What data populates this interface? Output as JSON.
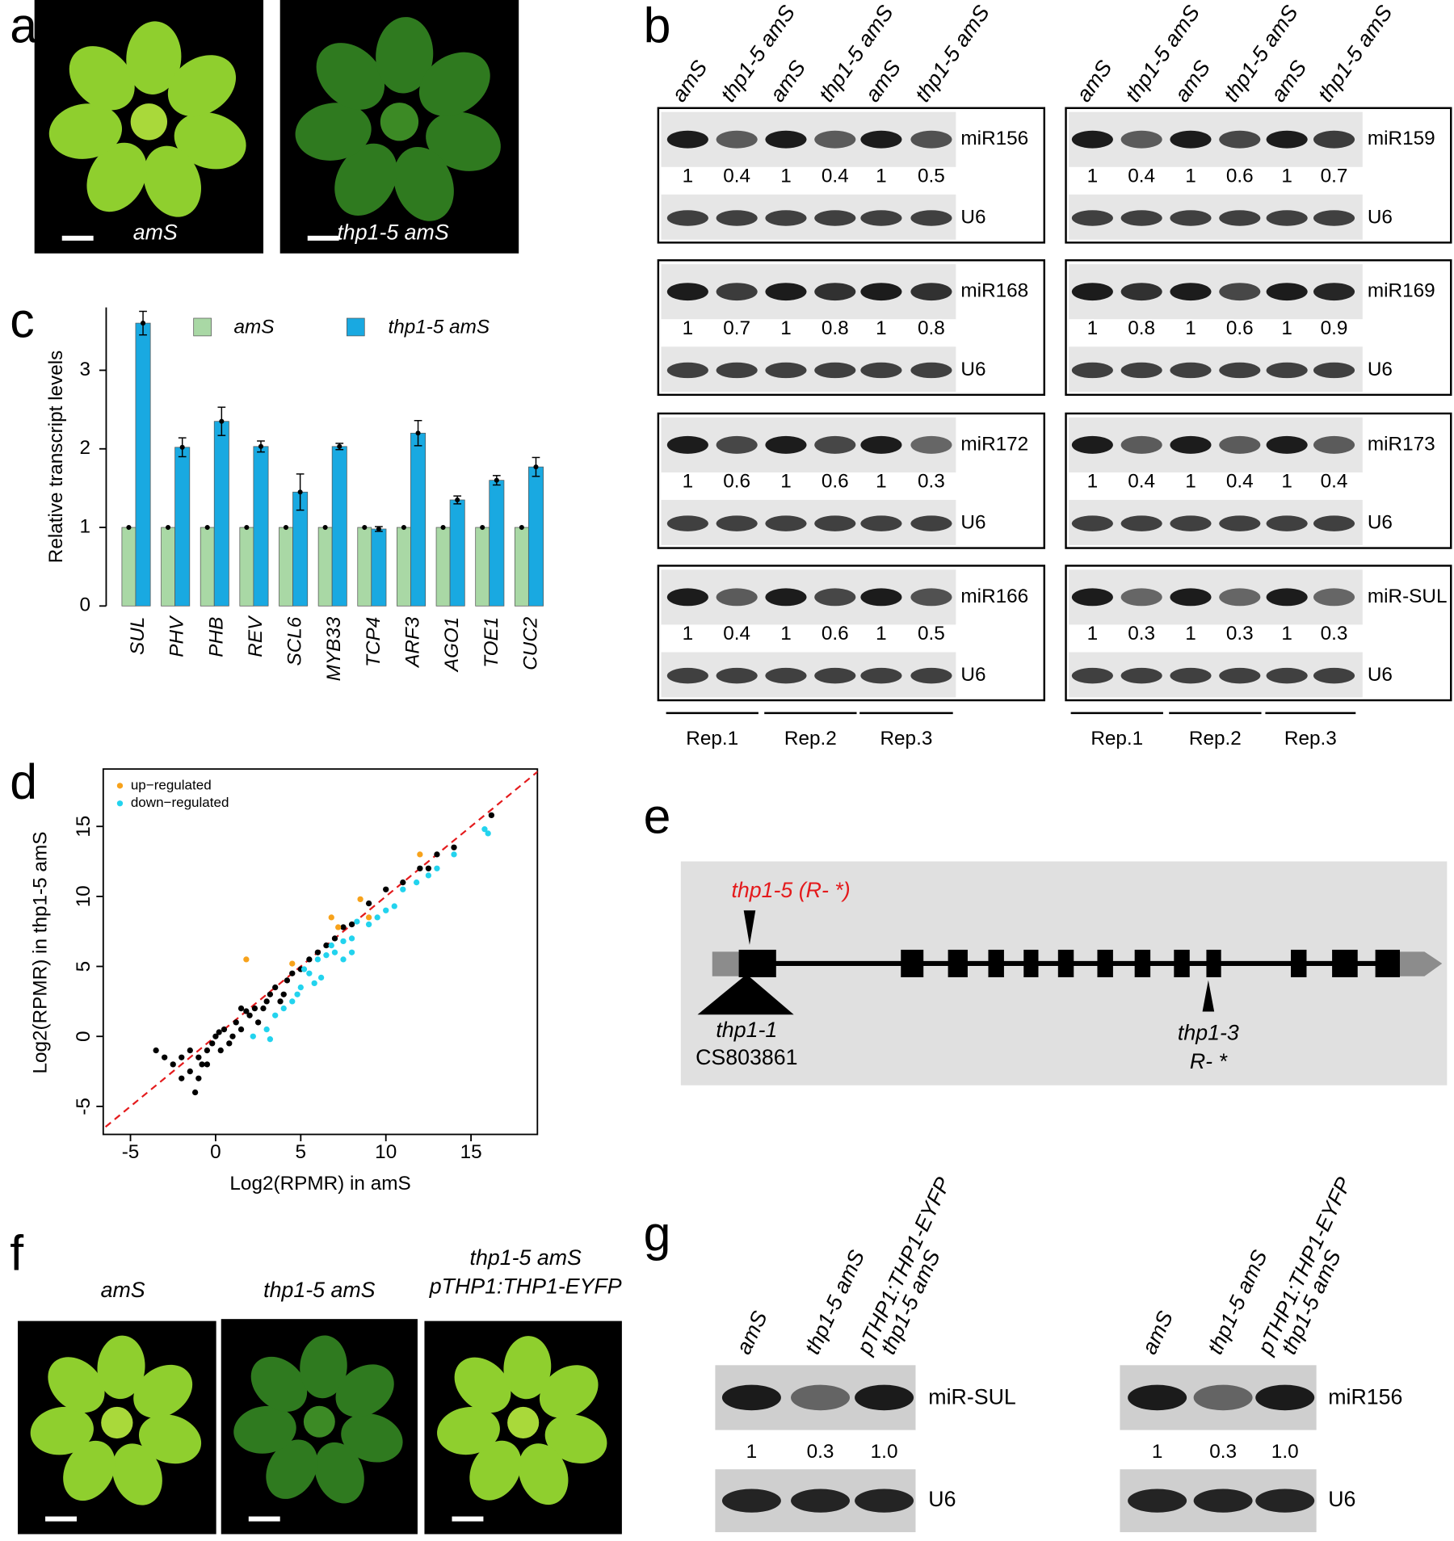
{
  "panel_letters": [
    "a",
    "b",
    "c",
    "d",
    "e",
    "f",
    "g"
  ],
  "a": {
    "labels": [
      "amS",
      "thp1-5 amS"
    ]
  },
  "b": {
    "lanes": [
      "amS",
      "thp1-5 amS",
      "amS",
      "thp1-5 amS",
      "amS",
      "thp1-5 amS"
    ],
    "reference": "U6",
    "left": [
      {
        "name": "miR156",
        "values": [
          "1",
          "0.4",
          "1",
          "0.4",
          "1",
          "0.5"
        ]
      },
      {
        "name": "miR168",
        "values": [
          "1",
          "0.7",
          "1",
          "0.8",
          "1",
          "0.8"
        ]
      },
      {
        "name": "miR172",
        "values": [
          "1",
          "0.6",
          "1",
          "0.6",
          "1",
          "0.3"
        ]
      },
      {
        "name": "miR166",
        "values": [
          "1",
          "0.4",
          "1",
          "0.6",
          "1",
          "0.5"
        ]
      }
    ],
    "right": [
      {
        "name": "miR159",
        "values": [
          "1",
          "0.4",
          "1",
          "0.6",
          "1",
          "0.7"
        ]
      },
      {
        "name": "miR169",
        "values": [
          "1",
          "0.8",
          "1",
          "0.6",
          "1",
          "0.9"
        ]
      },
      {
        "name": "miR173",
        "values": [
          "1",
          "0.4",
          "1",
          "0.4",
          "1",
          "0.4"
        ]
      },
      {
        "name": "miR-SUL",
        "values": [
          "1",
          "0.3",
          "1",
          "0.3",
          "1",
          "0.3"
        ]
      }
    ],
    "reps": [
      "Rep.1",
      "Rep.2",
      "Rep.3"
    ]
  },
  "chart_data": [
    {
      "type": "bar",
      "y_label": "Relative transcript levels",
      "categories": [
        "SUL",
        "PHV",
        "PHB",
        "REV",
        "SCL6",
        "MYB33",
        "TCP4",
        "ARF3",
        "AGO1",
        "TOE1",
        "CUC2"
      ],
      "series": [
        {
          "name": "amS",
          "color": "#a9d8a5",
          "values": [
            1,
            1,
            1,
            1,
            1,
            1,
            1,
            1,
            1,
            1,
            1
          ]
        },
        {
          "name": "thp1-5 amS",
          "color": "#19a9e1",
          "values": [
            3.6,
            2.02,
            2.35,
            2.03,
            1.45,
            2.03,
            0.98,
            2.2,
            1.35,
            1.6,
            1.77
          ],
          "errors": [
            0.15,
            0.12,
            0.18,
            0.07,
            0.23,
            0.04,
            0.03,
            0.16,
            0.05,
            0.06,
            0.12
          ]
        }
      ],
      "ylim": [
        0,
        3.8
      ],
      "yticks": [
        0,
        1,
        2,
        3
      ]
    },
    {
      "type": "scatter",
      "x_label": "Log2(RPMR) in amS",
      "y_label": "Log2(RPMR) in thp1-5 amS",
      "series": [
        {
          "color": "#000000",
          "x": [
            -3.5,
            -3,
            -2.5,
            -2,
            -1.5,
            -1.2,
            -1,
            -0.8,
            -0.5,
            -0.2,
            0,
            0.3,
            0.5,
            1,
            1.2,
            1.5,
            2,
            2.3,
            2.5,
            3,
            3.2,
            3.5,
            4,
            4.2,
            4.5,
            5,
            5.5,
            6,
            6.5,
            7,
            7.5,
            8,
            9,
            10,
            11,
            12,
            12.5,
            13,
            14,
            16.2,
            -1.5,
            -0.5,
            0.8,
            1.8,
            2.8,
            3.8,
            -2,
            -1,
            0.2,
            1.5
          ],
          "y": [
            -1,
            -1.5,
            -2,
            -1.5,
            -2.5,
            -4,
            -3,
            -2,
            -1,
            -0.5,
            0,
            -1,
            0.5,
            0,
            1,
            0.5,
            1.5,
            2,
            1,
            2.5,
            3,
            3.5,
            3,
            4,
            4.5,
            4.8,
            5.5,
            6,
            6.5,
            7,
            7.8,
            8,
            9.5,
            10.5,
            11,
            12,
            12,
            13,
            13.5,
            15.8,
            -1,
            -2,
            -0.5,
            1.8,
            2,
            2.5,
            -3,
            -1.5,
            0.3,
            2
          ]
        },
        {
          "name": "up−regulated",
          "color": "#f7a21b",
          "x": [
            1.8,
            4.5,
            6.8,
            7.2,
            9,
            12,
            8.5
          ],
          "y": [
            5.5,
            5.2,
            8.5,
            7.8,
            8.5,
            13,
            9.8
          ]
        },
        {
          "name": "down−regulated",
          "color": "#22d3ee",
          "x": [
            16,
            15.8,
            14,
            13,
            12.5,
            11.8,
            11,
            10.5,
            10,
            9.5,
            9,
            8.3,
            8,
            7.5,
            7,
            6.8,
            6.5,
            6,
            5.5,
            5.2,
            5,
            4.8,
            4.5,
            4,
            3.5,
            3,
            2.2,
            3.2,
            7.5,
            8,
            5.8,
            6.2
          ],
          "y": [
            14.5,
            14.8,
            13,
            12,
            11.5,
            11,
            10.5,
            9.3,
            9,
            8.5,
            8,
            8.2,
            7,
            6.8,
            6,
            6.5,
            5.8,
            5.5,
            4.5,
            4.8,
            3.5,
            3,
            2.5,
            2,
            1.5,
            0.5,
            0,
            -0.2,
            5.5,
            6,
            3.8,
            4.2
          ]
        }
      ],
      "xlim": [
        -6.6,
        18.9
      ],
      "ylim": [
        -7,
        19.1
      ],
      "xticks": [
        -5,
        0,
        5,
        10,
        15
      ],
      "yticks": [
        -5,
        0,
        5,
        10,
        15
      ],
      "identity_line": true,
      "legend": "top-left"
    }
  ],
  "e": {
    "mutation_top": "thp1-5 (R- *)",
    "insertion": [
      "thp1-1",
      "CS803861"
    ],
    "mutation_bottom": [
      "thp1-3",
      "R- *"
    ]
  },
  "f": {
    "labels": [
      "amS",
      "thp1-5 amS"
    ],
    "complemented": [
      "thp1-5 amS",
      "pTHP1:THP1-EYFP"
    ]
  },
  "g": {
    "lanes": [
      "amS",
      "thp1-5 amS"
    ],
    "complemented": [
      "pTHP1:THP1-EYFP",
      "thp1-5 amS"
    ],
    "reference": "U6",
    "blots": [
      {
        "name": "miR-SUL",
        "values": [
          "1",
          "0.3",
          "1.0"
        ]
      },
      {
        "name": "miR156",
        "values": [
          "1",
          "0.3",
          "1.0"
        ]
      }
    ]
  }
}
